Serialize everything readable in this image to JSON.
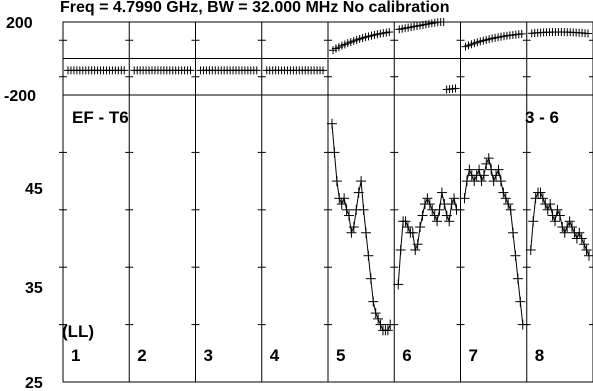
{
  "chart_data": {
    "type": "scatter",
    "title": "Freq = 4.7990 GHz, BW = 32.000 MHz   No calibration",
    "baseline_label": "EF - T6",
    "subplot_label": "3 - 6",
    "polarization_label": "(LL)",
    "panels": [
      "1",
      "2",
      "3",
      "4",
      "5",
      "6",
      "7",
      "8"
    ],
    "phase_axis": {
      "ylim": [
        -200,
        200
      ],
      "ticks": [
        "200",
        "-200"
      ]
    },
    "amp_axis": {
      "ylim": [
        25,
        50
      ],
      "ticks": [
        "45",
        "35",
        "25"
      ]
    },
    "phase_series": [
      {
        "panel": 1,
        "y": [
          -65,
          -65,
          -65,
          -65,
          -65,
          -65,
          -65,
          -65,
          -65,
          -65,
          -65,
          -65,
          -65,
          -65,
          -65,
          -65,
          -65,
          -65,
          -65,
          -65
        ]
      },
      {
        "panel": 2,
        "y": [
          -65,
          -65,
          -65,
          -65,
          -65,
          -65,
          -65,
          -65,
          -65,
          -65,
          -65,
          -65,
          -65,
          -65,
          -65,
          -65,
          -65,
          -65,
          -65,
          -65
        ]
      },
      {
        "panel": 3,
        "y": [
          -65,
          -65,
          -65,
          -65,
          -65,
          -65,
          -65,
          -65,
          -65,
          -65,
          -65,
          -65,
          -65,
          -65,
          -65,
          -65,
          -65,
          -65,
          -65,
          -65
        ]
      },
      {
        "panel": 4,
        "y": [
          -65,
          -65,
          -65,
          -65,
          -65,
          -65,
          -65,
          -65,
          -65,
          -65,
          -65,
          -65,
          -65,
          -65,
          -65,
          -65,
          -65,
          -65,
          -65,
          -65
        ]
      },
      {
        "panel": 5,
        "y": [
          45,
          55,
          62,
          70,
          77,
          84,
          90,
          96,
          102,
          107,
          112,
          117,
          121,
          125,
          129,
          133,
          136,
          139,
          142,
          145
        ]
      },
      {
        "panel": 6,
        "y": [
          160,
          163,
          166,
          169,
          172,
          175,
          178,
          181,
          184,
          187,
          190,
          193,
          196,
          199,
          200,
          200,
          -170,
          -168,
          -166,
          -164
        ]
      },
      {
        "panel": 7,
        "y": [
          65,
          72,
          78,
          84,
          89,
          94,
          98,
          102,
          106,
          110,
          113,
          116,
          119,
          122,
          125,
          127,
          129,
          131,
          133,
          135
        ]
      },
      {
        "panel": 8,
        "y": [
          138,
          140,
          141,
          142,
          143,
          144,
          144,
          145,
          145,
          145,
          145,
          145,
          144,
          144,
          143,
          142,
          141,
          140,
          138,
          137
        ]
      }
    ],
    "amp_series": [
      {
        "panel": 5,
        "y": [
          47.5,
          45,
          42.5,
          41,
          40.5,
          41,
          40,
          39.5,
          38,
          38.5,
          40,
          41.5,
          42.5,
          40,
          38,
          36,
          34,
          32,
          31,
          30.5,
          30,
          29.5,
          29.5,
          29.5,
          30
        ]
      },
      {
        "panel": 6,
        "y": [
          33.5,
          36.5,
          39,
          39,
          38.5,
          38,
          38,
          36.5,
          37,
          38.5,
          39.5,
          40.5,
          41,
          40.5,
          40,
          39.5,
          39,
          40,
          41.5,
          40.5,
          39.5,
          39,
          40.5,
          41,
          40
        ]
      },
      {
        "panel": 7,
        "y": [
          41,
          42.5,
          43.5,
          43,
          42.5,
          43,
          43.5,
          42.5,
          43,
          44,
          44.5,
          43.5,
          42.5,
          43,
          43.5,
          42.5,
          41.5,
          41,
          40.5,
          40,
          38,
          36,
          34,
          32,
          30
        ]
      },
      {
        "panel": 8,
        "y": [
          36.5,
          39,
          41,
          41.5,
          41.5,
          41,
          40.5,
          40,
          40.5,
          39.5,
          39,
          40,
          39.5,
          38.5,
          38,
          38.5,
          39,
          38.5,
          38,
          37.5,
          38,
          37.5,
          37,
          36.5,
          36
        ]
      }
    ]
  }
}
